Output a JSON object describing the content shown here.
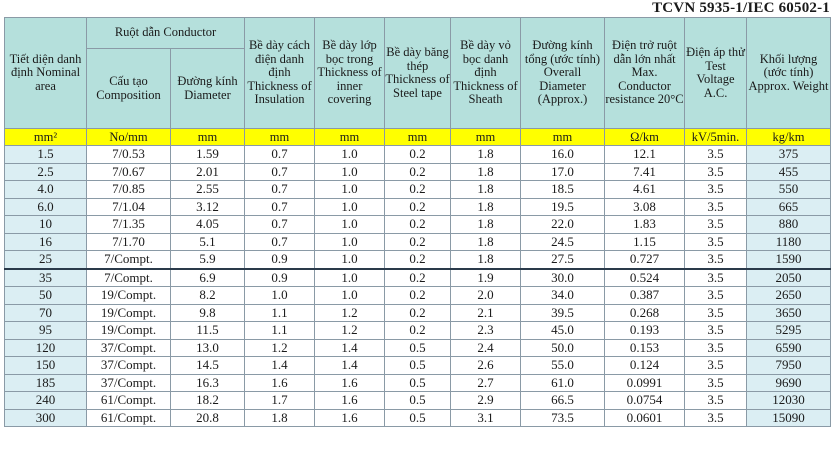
{
  "standard": "TCVN 5935-1/IEC 60502-1",
  "headers": {
    "area": "Tiết diện danh định Nominal area",
    "conductor": "Ruột dẫn Conductor",
    "composition": "Cấu tạo Composition",
    "diameter": "Đường kính Diameter",
    "insulation": "Bề dày cách điện danh định Thickness of Insulation",
    "inner": "Bề dày lớp bọc trong Thickness of inner covering",
    "steel": "Bề dày băng thép Thickness of Steel tape",
    "sheath": "Bề dày vỏ bọc danh định Thickness of Sheath",
    "overall": "Đường kính tổng (ước tính) Overall Diameter (Approx.)",
    "resistance": "Điện trở ruột dẫn lớn nhất Max. Conductor resistance 20°C",
    "voltage": "Điện áp thử Test Voltage A.C.",
    "weight": "Khối lượng (ước tính) Approx. Weight"
  },
  "units": [
    "mm²",
    "No/mm",
    "mm",
    "mm",
    "mm",
    "mm",
    "mm",
    "mm",
    "Ω/km",
    "kV/5min.",
    "kg/km"
  ],
  "rows": [
    [
      "1.5",
      "7/0.53",
      "1.59",
      "0.7",
      "1.0",
      "0.2",
      "1.8",
      "16.0",
      "12.1",
      "3.5",
      "375"
    ],
    [
      "2.5",
      "7/0.67",
      "2.01",
      "0.7",
      "1.0",
      "0.2",
      "1.8",
      "17.0",
      "7.41",
      "3.5",
      "455"
    ],
    [
      "4.0",
      "7/0.85",
      "2.55",
      "0.7",
      "1.0",
      "0.2",
      "1.8",
      "18.5",
      "4.61",
      "3.5",
      "550"
    ],
    [
      "6.0",
      "7/1.04",
      "3.12",
      "0.7",
      "1.0",
      "0.2",
      "1.8",
      "19.5",
      "3.08",
      "3.5",
      "665"
    ],
    [
      "10",
      "7/1.35",
      "4.05",
      "0.7",
      "1.0",
      "0.2",
      "1.8",
      "22.0",
      "1.83",
      "3.5",
      "880"
    ],
    [
      "16",
      "7/1.70",
      "5.1",
      "0.7",
      "1.0",
      "0.2",
      "1.8",
      "24.5",
      "1.15",
      "3.5",
      "1180"
    ],
    [
      "25",
      "7/Compt.",
      "5.9",
      "0.9",
      "1.0",
      "0.2",
      "1.8",
      "27.5",
      "0.727",
      "3.5",
      "1590"
    ],
    [
      "35",
      "7/Compt.",
      "6.9",
      "0.9",
      "1.0",
      "0.2",
      "1.9",
      "30.0",
      "0.524",
      "3.5",
      "2050"
    ],
    [
      "50",
      "19/Compt.",
      "8.2",
      "1.0",
      "1.0",
      "0.2",
      "2.0",
      "34.0",
      "0.387",
      "3.5",
      "2650"
    ],
    [
      "70",
      "19/Compt.",
      "9.8",
      "1.1",
      "1.2",
      "0.2",
      "2.1",
      "39.5",
      "0.268",
      "3.5",
      "3650"
    ],
    [
      "95",
      "19/Compt.",
      "11.5",
      "1.1",
      "1.2",
      "0.2",
      "2.3",
      "45.0",
      "0.193",
      "3.5",
      "5295"
    ],
    [
      "120",
      "37/Compt.",
      "13.0",
      "1.2",
      "1.4",
      "0.5",
      "2.4",
      "50.0",
      "0.153",
      "3.5",
      "6590"
    ],
    [
      "150",
      "37/Compt.",
      "14.5",
      "1.4",
      "1.4",
      "0.5",
      "2.6",
      "55.0",
      "0.124",
      "3.5",
      "7950"
    ],
    [
      "185",
      "37/Compt.",
      "16.3",
      "1.6",
      "1.6",
      "0.5",
      "2.7",
      "61.0",
      "0.0991",
      "3.5",
      "9690"
    ],
    [
      "240",
      "61/Compt.",
      "18.2",
      "1.7",
      "1.6",
      "0.5",
      "2.9",
      "66.5",
      "0.0754",
      "3.5",
      "12030"
    ],
    [
      "300",
      "61/Compt.",
      "20.8",
      "1.8",
      "1.6",
      "0.5",
      "3.1",
      "73.5",
      "0.0601",
      "3.5",
      "15090"
    ]
  ]
}
